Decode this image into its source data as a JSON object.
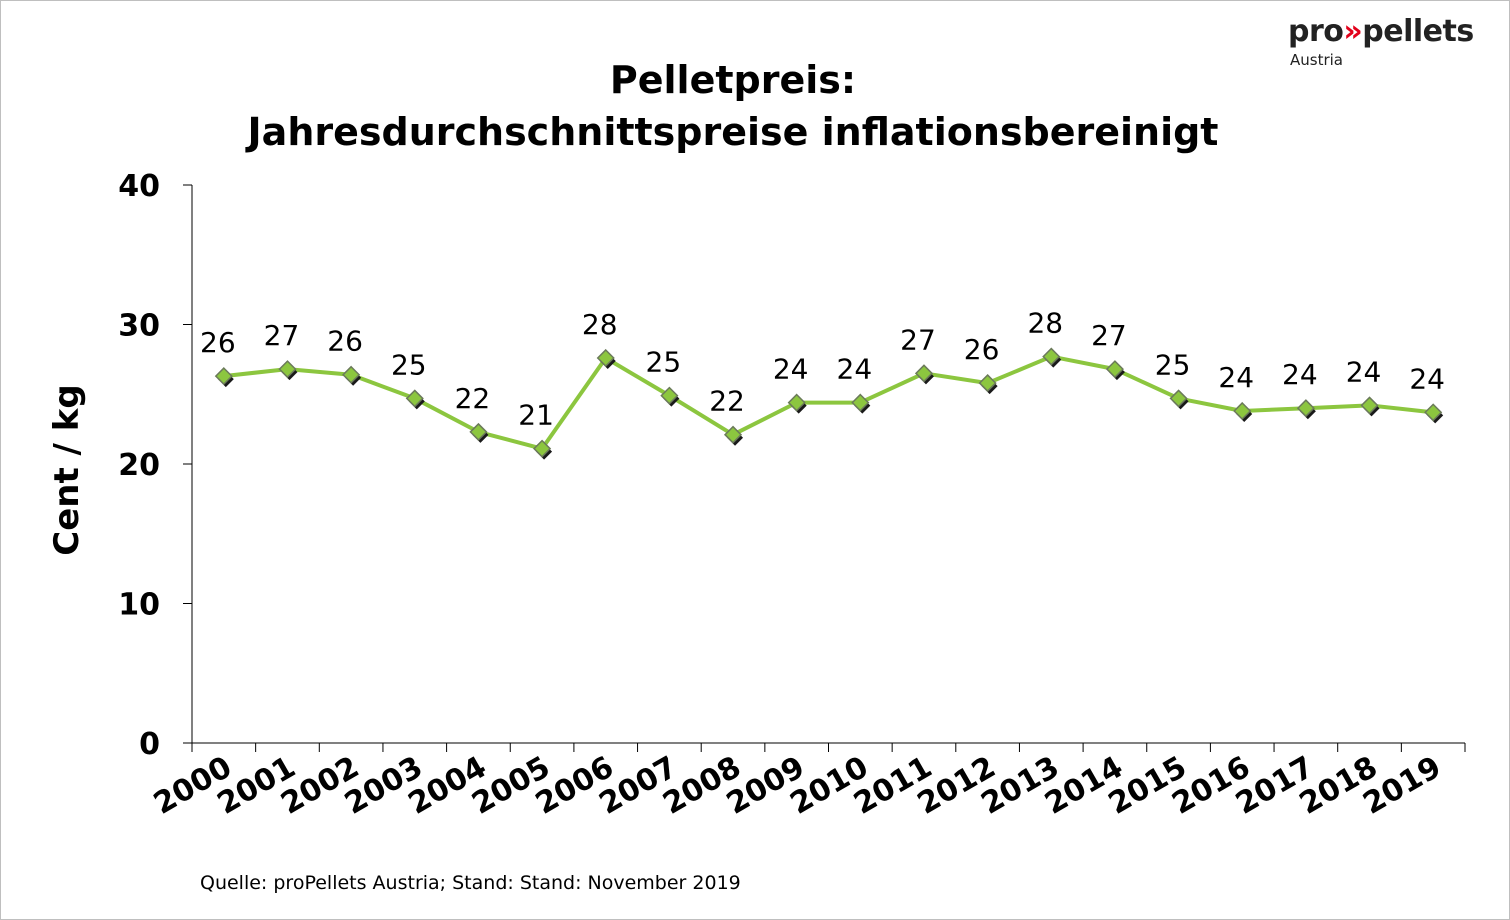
{
  "logo": {
    "pro": "pro",
    "arrows": "»",
    "pellets": "pellets",
    "country": "Austria"
  },
  "colors": {
    "line": "#8cc63f",
    "marker_fill": "#8cc63f",
    "marker_shadow": "#1a1a1a",
    "axis": "#000000"
  },
  "chart_data": {
    "type": "line",
    "title": "Pelletpreis:",
    "subtitle": "Jahresdurchschnittspreise inflationsbereinigt",
    "xlabel": "",
    "ylabel": "Cent / kg",
    "ylim": [
      0,
      40
    ],
    "yticks": [
      0,
      10,
      20,
      30,
      40
    ],
    "grid": false,
    "categories": [
      "2000",
      "2001",
      "2002",
      "2003",
      "2004",
      "2005",
      "2006",
      "2007",
      "2008",
      "2009",
      "2010",
      "2011",
      "2012",
      "2013",
      "2014",
      "2015",
      "2016",
      "2017",
      "2018",
      "2019"
    ],
    "values": [
      26.3,
      26.8,
      26.4,
      24.7,
      22.3,
      21.1,
      27.6,
      24.9,
      22.1,
      24.4,
      24.4,
      26.5,
      25.8,
      27.7,
      26.8,
      24.7,
      23.8,
      24.0,
      24.2,
      23.7
    ],
    "data_labels": [
      "26",
      "27",
      "26",
      "25",
      "22",
      "21",
      "28",
      "25",
      "22",
      "24",
      "24",
      "27",
      "26",
      "28",
      "27",
      "25",
      "24",
      "24",
      "24",
      "24"
    ]
  },
  "footer": {
    "source": "Quelle: proPellets Austria; Stand: Stand: November 2019"
  }
}
